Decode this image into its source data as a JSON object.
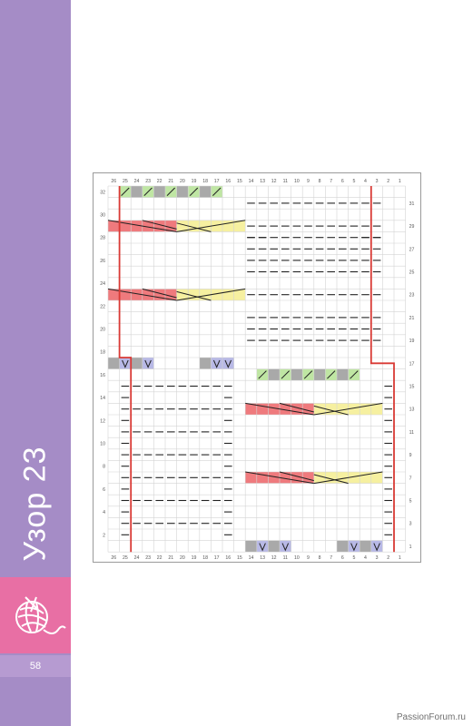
{
  "page": {
    "title": "Узор 23",
    "page_number": "58",
    "watermark": "PassionForum.ru",
    "sidebar_color": "#a58cc6",
    "accent_pink": "#e86fa4"
  },
  "chart": {
    "columns": [
      "26",
      "25",
      "24",
      "23",
      "22",
      "21",
      "20",
      "19",
      "18",
      "17",
      "16",
      "15",
      "14",
      "13",
      "12",
      "11",
      "10",
      "9",
      "8",
      "7",
      "6",
      "5",
      "4",
      "3",
      "2",
      "1"
    ],
    "left_row_labels": [
      "32",
      "30",
      "28",
      "26",
      "24",
      "22",
      "20",
      "18",
      "16",
      "14",
      "12",
      "10",
      "8",
      "6",
      "4",
      "2"
    ],
    "right_row_labels": [
      "31",
      "29",
      "27",
      "25",
      "23",
      "21",
      "19",
      "17",
      "15",
      "13",
      "11",
      "9",
      "7",
      "5",
      "3",
      "1"
    ],
    "rows": 32,
    "colors": {
      "red_cable": "#ef7a7d",
      "yellow_cable": "#f6f0a0",
      "green": "#bfe6a3",
      "gray": "#a9a9a9",
      "blue": "#b8b9e6",
      "border_red": "#d93a35"
    }
  }
}
